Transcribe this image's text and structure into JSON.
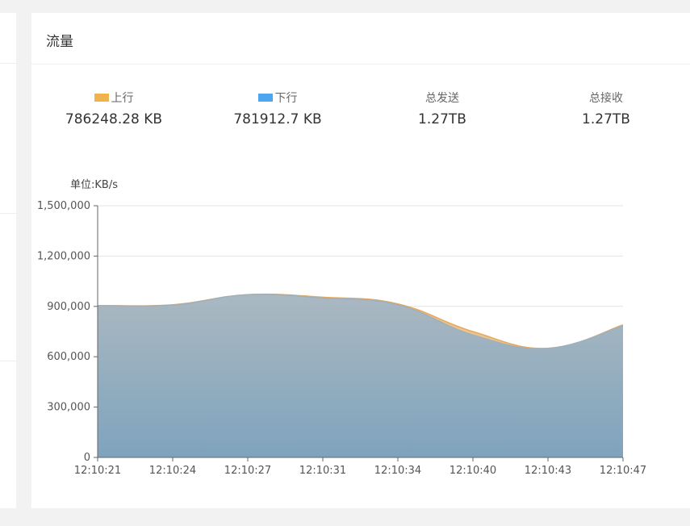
{
  "panel": {
    "title": "流量"
  },
  "stats": [
    {
      "label": "上行",
      "value": "786248.28 KB",
      "color": "#f0b24d"
    },
    {
      "label": "下行",
      "value": "781912.7 KB",
      "color": "#4da7f0"
    },
    {
      "label": "总发送",
      "value": "1.27TB",
      "color": ""
    },
    {
      "label": "总接收",
      "value": "1.27TB",
      "color": ""
    }
  ],
  "chart_data": {
    "type": "area",
    "unit_label": "单位:KB/s",
    "x": [
      "12:10:21",
      "12:10:24",
      "12:10:27",
      "12:10:31",
      "12:10:34",
      "12:10:40",
      "12:10:43",
      "12:10:47"
    ],
    "ylim": [
      0,
      1500000
    ],
    "yticks": [
      0,
      300000,
      600000,
      900000,
      1200000,
      1500000
    ],
    "ytick_labels": [
      "0",
      "300,000",
      "600,000",
      "900,000",
      "1,200,000",
      "1,500,000"
    ],
    "grid": true,
    "series": [
      {
        "name": "上行",
        "color": "#f0b24d",
        "values": [
          905000,
          910000,
          970000,
          955000,
          915000,
          750000,
          650000,
          790000
        ]
      },
      {
        "name": "下行",
        "color": "#4da7f0",
        "values": [
          905000,
          908000,
          970000,
          950000,
          910000,
          730000,
          650000,
          785000
        ]
      }
    ]
  }
}
